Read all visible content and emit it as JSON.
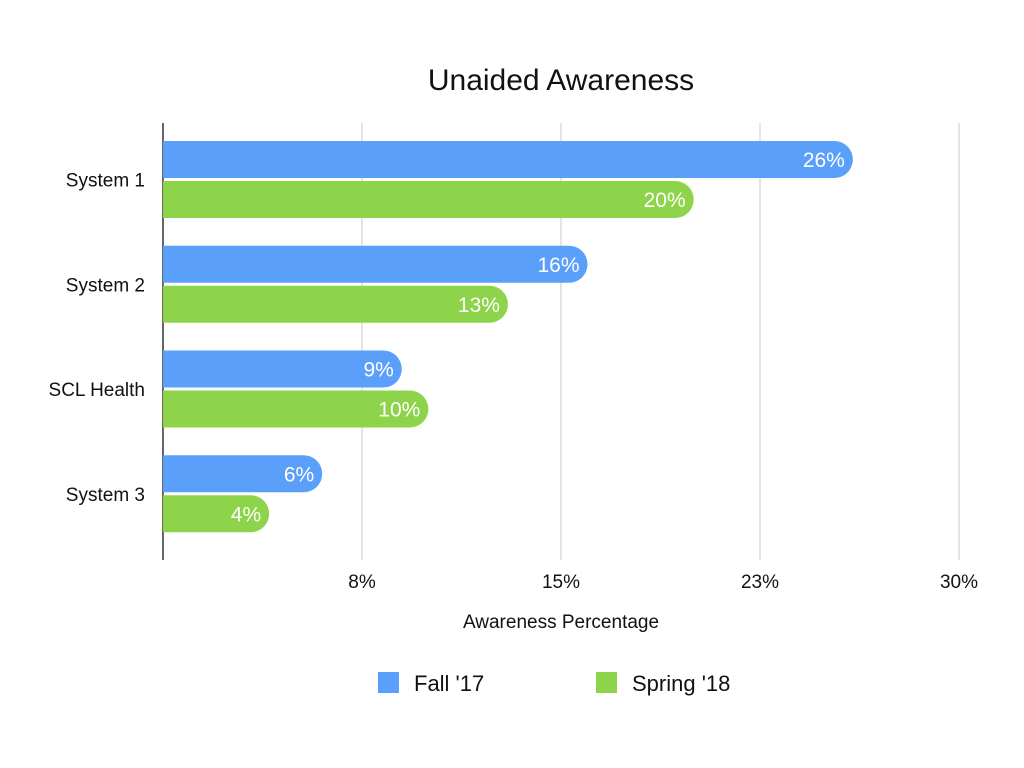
{
  "chart_data": {
    "type": "bar",
    "orientation": "horizontal",
    "title": "Unaided Awareness",
    "xlabel": "Awareness Percentage",
    "ylabel": "",
    "categories": [
      "System 1",
      "System 2",
      "SCL Health",
      "System 3"
    ],
    "series": [
      {
        "name": "Fall '17",
        "color": "#5aa0fa",
        "values": [
          26,
          16,
          9,
          6
        ],
        "labels": [
          "26%",
          "16%",
          "9%",
          "6%"
        ]
      },
      {
        "name": "Spring '18",
        "color": "#8ed44a",
        "values": [
          20,
          13,
          10,
          4
        ],
        "labels": [
          "20%",
          "13%",
          "10%",
          "4%"
        ]
      }
    ],
    "xlim": [
      0,
      30
    ],
    "ticks": [
      7.5,
      15,
      22.5,
      30
    ],
    "tick_labels": [
      "8%",
      "15%",
      "23%",
      "30%"
    ],
    "grid": true,
    "legend_position": "bottom"
  }
}
